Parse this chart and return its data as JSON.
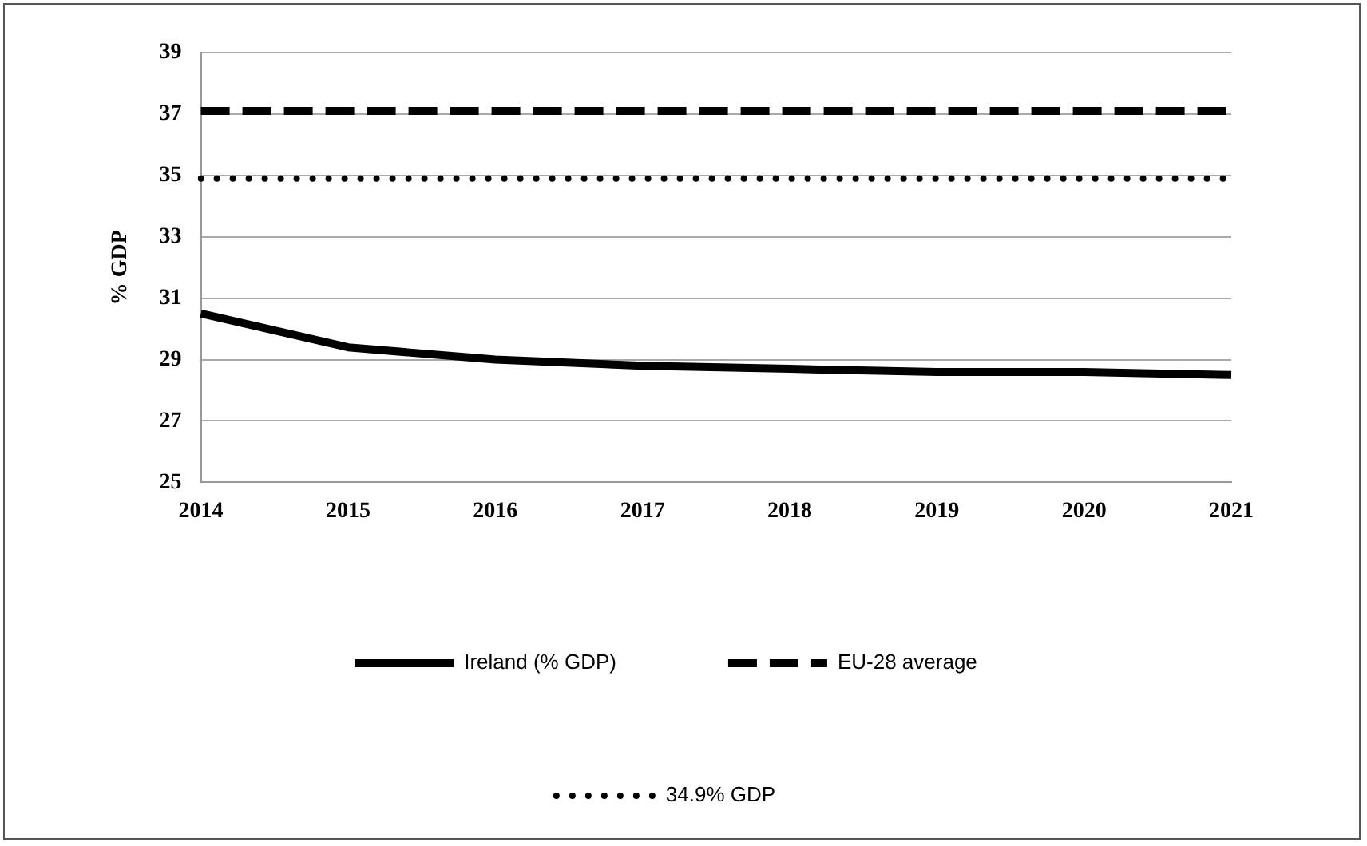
{
  "chart_data": {
    "type": "line",
    "ylabel": "% GDP",
    "categories": [
      "2014",
      "2015",
      "2016",
      "2017",
      "2018",
      "2019",
      "2020",
      "2021"
    ],
    "series": [
      {
        "name": "Ireland (% GDP)",
        "color": "#000000",
        "line_style": "solid",
        "values": [
          30.5,
          29.4,
          29.0,
          28.8,
          28.7,
          28.6,
          28.6,
          28.5
        ]
      },
      {
        "name": "EU-28 average",
        "color": "#000000",
        "line_style": "dashed",
        "values": [
          37.1,
          37.1,
          37.1,
          37.1,
          37.1,
          37.1,
          37.1,
          37.1
        ]
      },
      {
        "name": "34.9% GDP",
        "color": "#000000",
        "line_style": "dotted",
        "values": [
          34.9,
          34.9,
          34.9,
          34.9,
          34.9,
          34.9,
          34.9,
          34.9
        ]
      }
    ],
    "ylim": [
      25,
      39
    ],
    "yticks": [
      25,
      27,
      29,
      31,
      33,
      35,
      37,
      39
    ],
    "grid": "y",
    "legend": "bottom",
    "marker": "none"
  }
}
